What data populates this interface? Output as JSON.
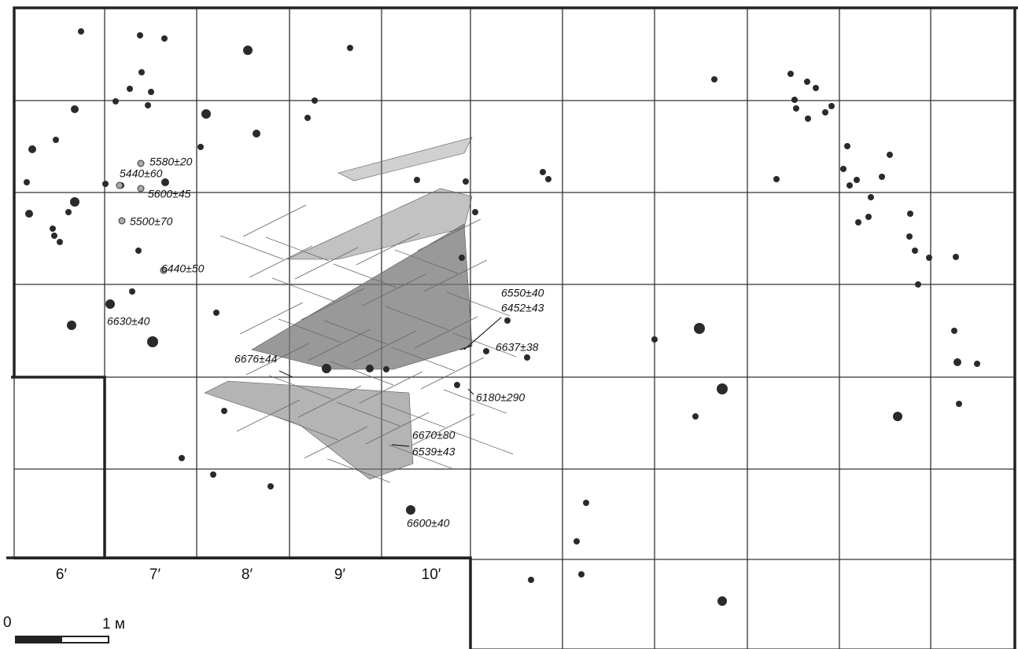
{
  "labels": [
    "5580±20",
    "5440±60",
    "5600±45",
    "5500±70",
    "6440±50",
    "6630±40",
    "6676±44",
    "6550±40",
    "6452±43",
    "6637±38",
    "6180±290",
    "6670±80",
    "6539±43",
    "6600±40"
  ],
  "columns": [
    "6′",
    "7′",
    "8′",
    "9′",
    "10′"
  ],
  "scale": {
    "zero": "0",
    "unit": "1 м"
  }
}
